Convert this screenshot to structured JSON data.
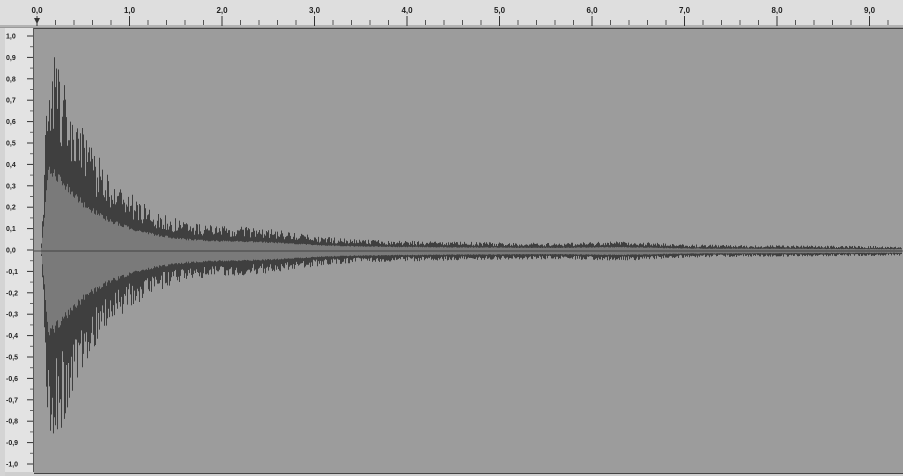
{
  "app": {
    "view": "audio waveform editor"
  },
  "timeline": {
    "ticks": [
      {
        "label": "0,0",
        "value": 0.0
      },
      {
        "label": "1,0",
        "value": 1.0
      },
      {
        "label": "2,0",
        "value": 2.0
      },
      {
        "label": "3,0",
        "value": 3.0
      },
      {
        "label": "4,0",
        "value": 4.0
      },
      {
        "label": "5,0",
        "value": 5.0
      },
      {
        "label": "6,0",
        "value": 6.0
      },
      {
        "label": "7,0",
        "value": 7.0
      },
      {
        "label": "8,0",
        "value": 8.0
      },
      {
        "label": "9,0",
        "value": 9.0
      }
    ],
    "playhead_position_seconds": 0.0
  },
  "amplitude_ruler": {
    "labels": [
      "1,0",
      "0,9",
      "0,8",
      "0,7",
      "0,6",
      "0,5",
      "0,4",
      "0,3",
      "0,2",
      "0,1",
      "0,0",
      "-0,1",
      "-0,2",
      "-0,3",
      "-0,4",
      "-0,5",
      "-0,6",
      "-0,7",
      "-0,8",
      "-0,9",
      "-1,0"
    ]
  },
  "waveform": {
    "duration_visible_seconds": 9.35,
    "peak_amplitude": 0.95,
    "colors": {
      "background": "#9c9c9c",
      "peak": "#3f3f3f",
      "rms": "#7a7a7a",
      "centerline": "#2a2a2a"
    }
  }
}
